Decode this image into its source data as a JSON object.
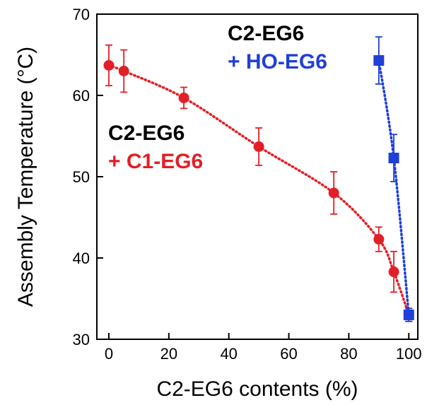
{
  "chart_data": {
    "type": "scatter",
    "xlabel": "C2-EG6 contents (%)",
    "ylabel": "Assembly Temperature (°C)",
    "xlim": [
      -4,
      103
    ],
    "ylim": [
      30,
      70
    ],
    "x_ticks": [
      0,
      20,
      40,
      60,
      80,
      100
    ],
    "y_ticks": [
      30,
      40,
      50,
      60,
      70
    ],
    "x_tick_labels": [
      "0",
      "20",
      "40",
      "60",
      "80",
      "100"
    ],
    "y_tick_labels": [
      "30",
      "40",
      "50",
      "60",
      "70"
    ],
    "grid": false,
    "series": [
      {
        "legend_line1": "C2-EG6",
        "legend_line2": "+ C1-EG6",
        "color": "#e21f26",
        "marker": "circle",
        "fit_line": "dotted",
        "points": [
          {
            "x": 0,
            "y": 63.7,
            "err": 2.5
          },
          {
            "x": 5,
            "y": 63.0,
            "err": 2.6
          },
          {
            "x": 25,
            "y": 59.7,
            "err": 1.3
          },
          {
            "x": 50,
            "y": 53.7,
            "err": 2.3
          },
          {
            "x": 75,
            "y": 48.0,
            "err": 2.6
          },
          {
            "x": 90,
            "y": 42.3,
            "err": 1.5
          },
          {
            "x": 95,
            "y": 38.3,
            "err": 2.5
          },
          {
            "x": 100,
            "y": 33.0,
            "err": 0.8
          }
        ]
      },
      {
        "legend_line1": "C2-EG6",
        "legend_line2": "+ HO-EG6",
        "color": "#1f3fd6",
        "marker": "square",
        "fit_line": "dotted",
        "points": [
          {
            "x": 90,
            "y": 64.3,
            "err": 2.9
          },
          {
            "x": 95,
            "y": 52.3,
            "err": 2.9
          },
          {
            "x": 100,
            "y": 33.0,
            "err": 0.8
          }
        ]
      }
    ]
  }
}
